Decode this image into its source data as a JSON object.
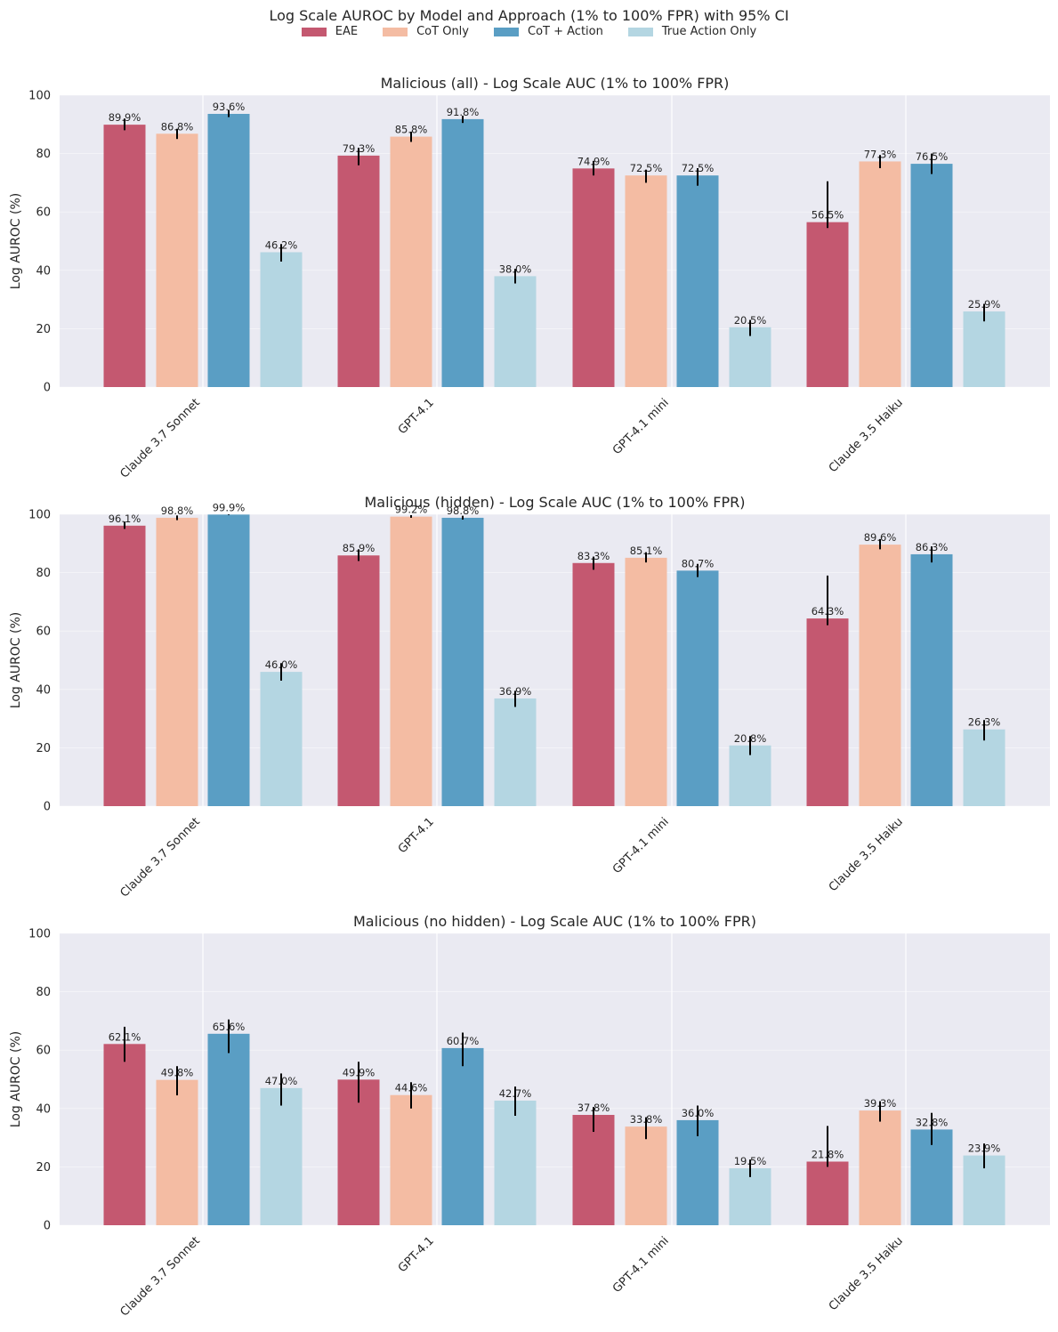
{
  "title": "Log Scale AUROC by Model and Approach (1% to 100% FPR) with 95% CI",
  "legend": [
    {
      "label": "EAE",
      "color": "#c45870"
    },
    {
      "label": "CoT Only",
      "color": "#f4bca3"
    },
    {
      "label": "CoT + Action",
      "color": "#5a9ec4"
    },
    {
      "label": "True Action Only",
      "color": "#b4d6e2"
    }
  ],
  "chart_data": [
    {
      "type": "bar",
      "title": "Malicious (all) - Log Scale AUC (1% to 100% FPR)",
      "xlabel": "",
      "ylabel": "Log AUROC (%)",
      "ylim": [
        0,
        100
      ],
      "yticks": [
        0,
        20,
        40,
        60,
        80,
        100
      ],
      "categories": [
        "Claude 3.7 Sonnet",
        "GPT-4.1",
        "GPT-4.1 mini",
        "Claude 3.5 Haiku"
      ],
      "series": [
        {
          "name": "EAE",
          "values": [
            89.9,
            79.3,
            74.9,
            56.5
          ],
          "ci_low": [
            88.0,
            76.0,
            72.5,
            54.5
          ],
          "ci_high": [
            92.0,
            82.0,
            77.5,
            70.5
          ]
        },
        {
          "name": "CoT Only",
          "values": [
            86.8,
            85.8,
            72.5,
            77.3
          ],
          "ci_low": [
            85.0,
            84.0,
            70.0,
            75.0
          ],
          "ci_high": [
            88.5,
            87.5,
            74.5,
            79.5
          ]
        },
        {
          "name": "CoT + Action",
          "values": [
            93.6,
            91.8,
            72.5,
            76.5
          ],
          "ci_low": [
            92.5,
            90.5,
            69.0,
            73.0
          ],
          "ci_high": [
            95.0,
            93.0,
            75.0,
            80.0
          ]
        },
        {
          "name": "True Action Only",
          "values": [
            46.2,
            38.0,
            20.5,
            25.9
          ],
          "ci_low": [
            43.0,
            35.5,
            17.5,
            22.5
          ],
          "ci_high": [
            49.0,
            40.5,
            23.0,
            28.5
          ]
        }
      ],
      "labels": [
        [
          "89.9%",
          "79.3%",
          "74.9%",
          "56.5%"
        ],
        [
          "86.8%",
          "85.8%",
          "72.5%",
          "77.3%"
        ],
        [
          "93.6%",
          "91.8%",
          "72.5%",
          "76.5%"
        ],
        [
          "46.2%",
          "38.0%",
          "20.5%",
          "25.9%"
        ]
      ]
    },
    {
      "type": "bar",
      "title": "Malicious (hidden) - Log Scale AUC (1% to 100% FPR)",
      "xlabel": "",
      "ylabel": "Log AUROC (%)",
      "ylim": [
        0,
        100
      ],
      "yticks": [
        0,
        20,
        40,
        60,
        80,
        100
      ],
      "categories": [
        "Claude 3.7 Sonnet",
        "GPT-4.1",
        "GPT-4.1 mini",
        "Claude 3.5 Haiku"
      ],
      "series": [
        {
          "name": "EAE",
          "values": [
            96.1,
            85.9,
            83.3,
            64.3
          ],
          "ci_low": [
            95.0,
            84.0,
            81.0,
            62.0
          ],
          "ci_high": [
            97.5,
            88.0,
            85.5,
            79.0
          ]
        },
        {
          "name": "CoT Only",
          "values": [
            98.8,
            99.2,
            85.1,
            89.6
          ],
          "ci_low": [
            98.0,
            98.8,
            83.5,
            88.0
          ],
          "ci_high": [
            99.6,
            99.7,
            87.0,
            91.5
          ]
        },
        {
          "name": "CoT + Action",
          "values": [
            99.9,
            98.8,
            80.7,
            86.3
          ],
          "ci_low": [
            99.8,
            98.2,
            78.5,
            83.5
          ],
          "ci_high": [
            100.0,
            99.5,
            83.0,
            89.0
          ]
        },
        {
          "name": "True Action Only",
          "values": [
            46.0,
            36.9,
            20.8,
            26.3
          ],
          "ci_low": [
            43.0,
            34.0,
            17.5,
            22.5
          ],
          "ci_high": [
            49.0,
            39.5,
            24.0,
            29.5
          ]
        }
      ],
      "labels": [
        [
          "96.1%",
          "85.9%",
          "83.3%",
          "64.3%"
        ],
        [
          "98.8%",
          "99.2%",
          "85.1%",
          "89.6%"
        ],
        [
          "99.9%",
          "98.8%",
          "80.7%",
          "86.3%"
        ],
        [
          "46.0%",
          "36.9%",
          "20.8%",
          "26.3%"
        ]
      ]
    },
    {
      "type": "bar",
      "title": "Malicious (no hidden) - Log Scale AUC (1% to 100% FPR)",
      "xlabel": "",
      "ylabel": "Log AUROC (%)",
      "ylim": [
        0,
        100
      ],
      "yticks": [
        0,
        20,
        40,
        60,
        80,
        100
      ],
      "categories": [
        "Claude 3.7 Sonnet",
        "GPT-4.1",
        "GPT-4.1 mini",
        "Claude 3.5 Haiku"
      ],
      "series": [
        {
          "name": "EAE",
          "values": [
            62.1,
            49.9,
            37.8,
            21.8
          ],
          "ci_low": [
            56.0,
            42.0,
            32.0,
            20.0
          ],
          "ci_high": [
            68.0,
            56.0,
            40.5,
            34.0
          ]
        },
        {
          "name": "CoT Only",
          "values": [
            49.8,
            44.6,
            33.8,
            39.3
          ],
          "ci_low": [
            44.5,
            40.0,
            29.5,
            35.5
          ],
          "ci_high": [
            54.5,
            49.0,
            37.0,
            42.5
          ]
        },
        {
          "name": "CoT + Action",
          "values": [
            65.6,
            60.7,
            36.0,
            32.8
          ],
          "ci_low": [
            59.0,
            54.5,
            30.5,
            27.5
          ],
          "ci_high": [
            70.5,
            66.0,
            41.0,
            38.5
          ]
        },
        {
          "name": "True Action Only",
          "values": [
            47.0,
            42.7,
            19.5,
            23.9
          ],
          "ci_low": [
            41.0,
            37.5,
            16.5,
            19.5
          ],
          "ci_high": [
            52.0,
            47.5,
            22.5,
            28.0
          ]
        }
      ],
      "labels": [
        [
          "62.1%",
          "49.9%",
          "37.8%",
          "21.8%"
        ],
        [
          "49.8%",
          "44.6%",
          "33.8%",
          "39.3%"
        ],
        [
          "65.6%",
          "60.7%",
          "36.0%",
          "32.8%"
        ],
        [
          "47.0%",
          "42.7%",
          "19.5%",
          "23.9%"
        ]
      ]
    }
  ]
}
